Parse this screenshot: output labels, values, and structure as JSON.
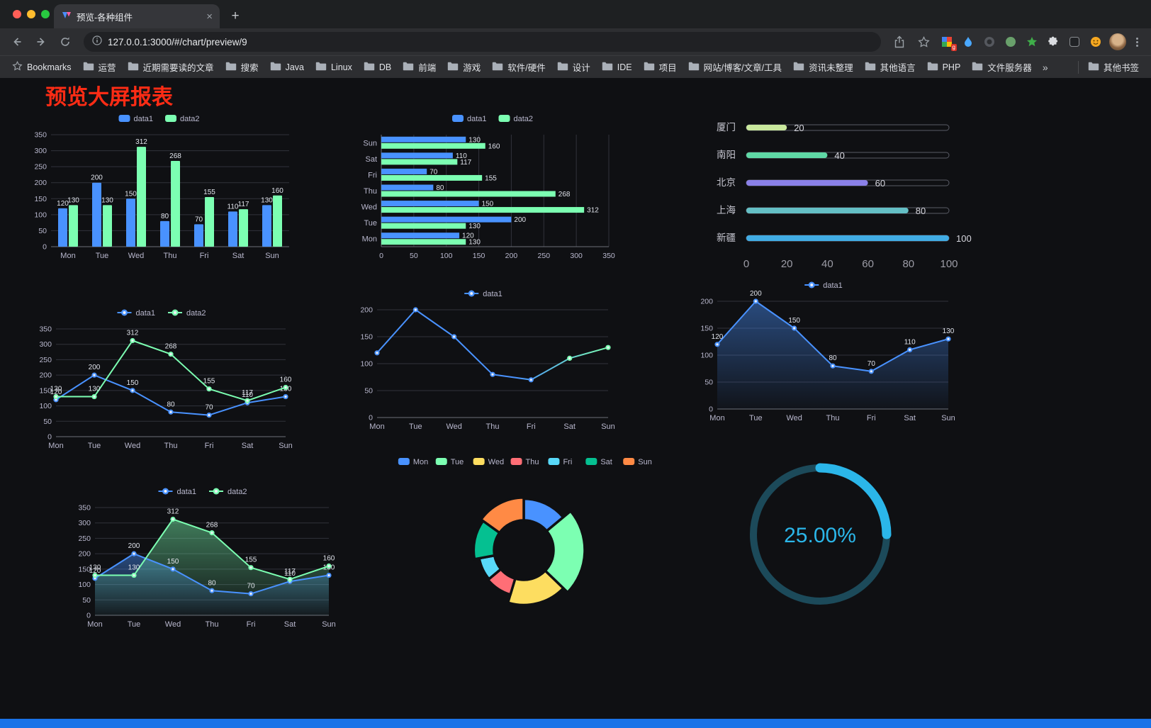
{
  "browser": {
    "tab": {
      "title": "预览-各种组件",
      "close_label": "×",
      "new_tab_label": "+"
    },
    "toolbar": {
      "url": "127.0.0.1:3000/#/chart/preview/9",
      "extensions": [
        {
          "id": "colorful-blocks-extension",
          "badge": "g"
        },
        {
          "id": "blue-drop-extension"
        },
        {
          "id": "dark-circle-extension"
        },
        {
          "id": "green-circle-extension"
        },
        {
          "id": "green-star-extension"
        },
        {
          "id": "extensions-puzzle"
        },
        {
          "id": "dark-square-extension"
        },
        {
          "id": "emoji-face-extension"
        }
      ]
    },
    "bookmarks": {
      "first_label": "Bookmarks",
      "folders": [
        "运营",
        "近期需要读的文章",
        "搜索",
        "Java",
        "Linux",
        "DB",
        "前端",
        "游戏",
        "软件/硬件",
        "设计",
        "IDE",
        "项目",
        "网站/博客/文章/工具",
        "资讯未整理",
        "其他语言",
        "PHP",
        "文件服务器"
      ],
      "overflow": "»",
      "other_label": "其他书签"
    }
  },
  "page": {
    "title": "预览大屏报表"
  },
  "chart_data": [
    {
      "type": "bar",
      "categories": [
        "Mon",
        "Tue",
        "Wed",
        "Thu",
        "Fri",
        "Sat",
        "Sun"
      ],
      "series": [
        {
          "name": "data1",
          "color": "#4992ff",
          "values": [
            120,
            200,
            150,
            80,
            70,
            110,
            130
          ]
        },
        {
          "name": "data2",
          "color": "#7cffb2",
          "values": [
            130,
            130,
            312,
            268,
            155,
            117,
            160
          ]
        }
      ],
      "ylim": [
        0,
        350
      ],
      "ytick": 50,
      "show_labels": true,
      "legend_position": "top",
      "grid": true
    },
    {
      "type": "hbar",
      "categories": [
        "Sun",
        "Sat",
        "Fri",
        "Thu",
        "Wed",
        "Tue",
        "Mon"
      ],
      "series": [
        {
          "name": "data1",
          "color": "#4992ff",
          "values": [
            130,
            110,
            70,
            80,
            150,
            200,
            120
          ]
        },
        {
          "name": "data2",
          "color": "#7cffb2",
          "values": [
            160,
            117,
            155,
            268,
            312,
            130,
            130
          ]
        }
      ],
      "xlim": [
        0,
        350
      ],
      "xtick": 50,
      "show_labels": true,
      "legend_position": "top",
      "grid": true
    },
    {
      "type": "progress",
      "max": 100,
      "xticks": [
        0,
        20,
        40,
        60,
        80,
        100
      ],
      "items": [
        {
          "label": "厦门",
          "value": 20,
          "color": "#c9e89d"
        },
        {
          "label": "南阳",
          "value": 40,
          "color": "#5fd8a5"
        },
        {
          "label": "北京",
          "value": 60,
          "color": "#8a80e8"
        },
        {
          "label": "上海",
          "value": 80,
          "color": "#64bfc5"
        },
        {
          "label": "新疆",
          "value": 100,
          "color": "#41ace4"
        }
      ]
    },
    {
      "type": "line",
      "categories": [
        "Mon",
        "Tue",
        "Wed",
        "Thu",
        "Fri",
        "Sat",
        "Sun"
      ],
      "series": [
        {
          "name": "data1",
          "color": "#4992ff",
          "values": [
            120,
            200,
            150,
            80,
            70,
            110,
            130
          ]
        },
        {
          "name": "data2",
          "color": "#7cffb2",
          "values": [
            130,
            130,
            312,
            268,
            155,
            117,
            160
          ]
        }
      ],
      "ylim": [
        0,
        350
      ],
      "ytick": 50,
      "show_labels": true,
      "legend_position": "top",
      "grid": true
    },
    {
      "type": "line",
      "categories": [
        "Mon",
        "Tue",
        "Wed",
        "Thu",
        "Fri",
        "Sat",
        "Sun"
      ],
      "series": [
        {
          "name": "data1",
          "color": "#4992ff",
          "end_color": "#7cffb2",
          "values": [
            120,
            200,
            150,
            80,
            70,
            110,
            130
          ]
        }
      ],
      "ylim": [
        0,
        200
      ],
      "ytick": 50,
      "show_labels": false,
      "legend_position": "top",
      "grid": true
    },
    {
      "type": "line",
      "categories": [
        "Mon",
        "Tue",
        "Wed",
        "Thu",
        "Fri",
        "Sat",
        "Sun"
      ],
      "series": [
        {
          "name": "data1",
          "color": "#4992ff",
          "area": true,
          "values": [
            120,
            200,
            150,
            80,
            70,
            110,
            130
          ]
        }
      ],
      "ylim": [
        0,
        200
      ],
      "ytick": 50,
      "show_labels": true,
      "legend_position": "top",
      "grid": true
    },
    {
      "type": "line",
      "categories": [
        "Mon",
        "Tue",
        "Wed",
        "Thu",
        "Fri",
        "Sat",
        "Sun"
      ],
      "series": [
        {
          "name": "data1",
          "color": "#4992ff",
          "area": true,
          "values": [
            120,
            200,
            150,
            80,
            70,
            110,
            130
          ]
        },
        {
          "name": "data2",
          "color": "#7cffb2",
          "area": true,
          "values": [
            130,
            130,
            312,
            268,
            155,
            117,
            160
          ]
        }
      ],
      "ylim": [
        0,
        350
      ],
      "ytick": 50,
      "show_labels": true,
      "legend_position": "top",
      "grid": true
    },
    {
      "type": "doughnut",
      "legend_position": "top",
      "slices": [
        {
          "label": "Mon",
          "value": 120,
          "color": "#4992ff"
        },
        {
          "label": "Tue",
          "value": 200,
          "color": "#7cffb2"
        },
        {
          "label": "Wed",
          "value": 150,
          "color": "#fddd60"
        },
        {
          "label": "Thu",
          "value": 80,
          "color": "#ff6e76"
        },
        {
          "label": "Fri",
          "value": 70,
          "color": "#58d9f9"
        },
        {
          "label": "Sat",
          "value": 110,
          "color": "#05c091"
        },
        {
          "label": "Sun",
          "value": 130,
          "color": "#ff8a45"
        }
      ]
    },
    {
      "type": "gauge",
      "value": 25,
      "label": "25.00%",
      "color": "#2bb6e9",
      "track_color": "#1c4a5a"
    }
  ]
}
